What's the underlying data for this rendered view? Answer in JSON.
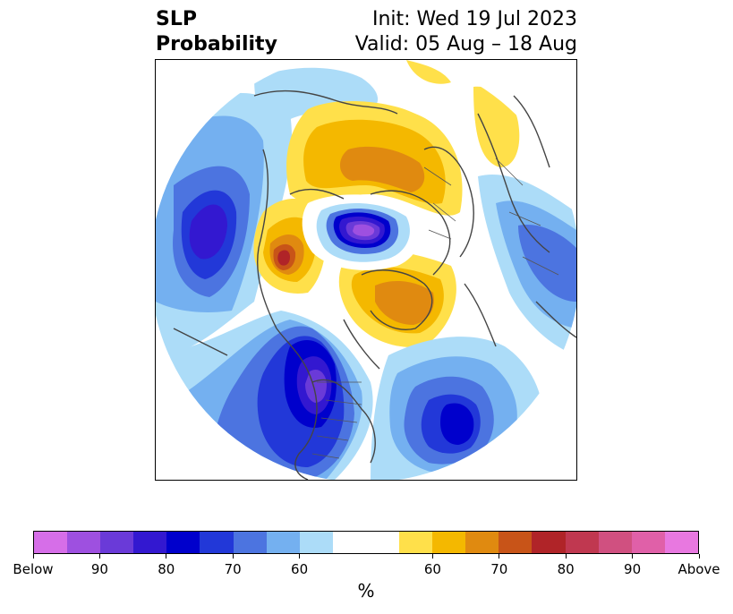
{
  "title": {
    "left_line1": "SLP",
    "left_line2": "Probability",
    "init": "Init: Wed 19 Jul 2023",
    "valid": "Valid: 05 Aug – 18 Aug"
  },
  "map": {
    "projection": "north-polar-stereographic",
    "variable": "sea-level-pressure tercile probability",
    "features": [
      {
        "name": "north-pacific-below-anomaly",
        "category": "below",
        "peak_pct": 85
      },
      {
        "name": "arctic-ocean-below-anomaly",
        "category": "below",
        "peak_pct": 95
      },
      {
        "name": "north-america-below-anomaly",
        "category": "below",
        "peak_pct": 90
      },
      {
        "name": "north-atlantic-below-anomaly",
        "category": "below",
        "peak_pct": 80
      },
      {
        "name": "europe-below-anomaly",
        "category": "below",
        "peak_pct": 70
      },
      {
        "name": "siberia-above-anomaly",
        "category": "above",
        "peak_pct": 70
      },
      {
        "name": "alaska-above-anomaly",
        "category": "above",
        "peak_pct": 80
      },
      {
        "name": "greenland-above-anomaly",
        "category": "above",
        "peak_pct": 70
      }
    ]
  },
  "colorbar": {
    "colors": [
      "#d66ee8",
      "#9e50e0",
      "#6a3ad8",
      "#3318d0",
      "#0000cc",
      "#2238d8",
      "#4c74e0",
      "#74b0f0",
      "#acdcf8",
      "#ffffff",
      "#ffe04a",
      "#f4b800",
      "#e08a10",
      "#c85418",
      "#b02428",
      "#c03850",
      "#d05080",
      "#e060a8",
      "#e878e0"
    ],
    "labels": [
      "Below",
      "90",
      "80",
      "70",
      "60",
      "60",
      "70",
      "80",
      "90",
      "Above"
    ],
    "unit": "%"
  }
}
